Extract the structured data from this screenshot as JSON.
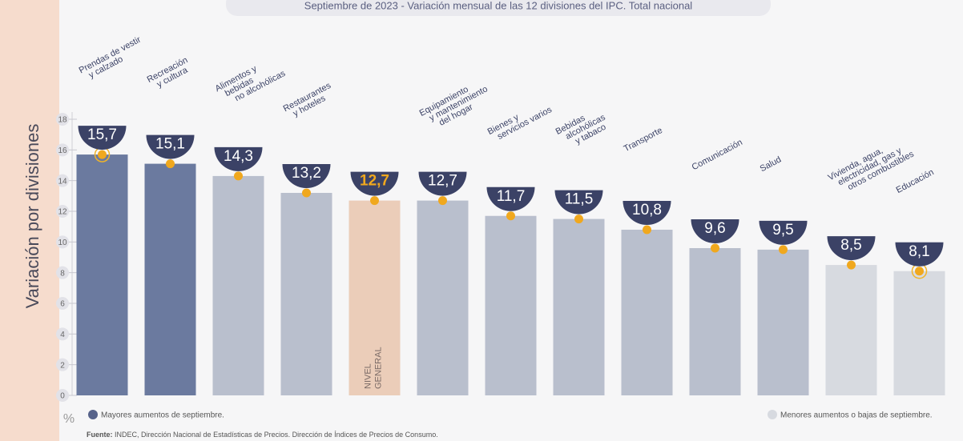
{
  "chart_data": {
    "type": "bar",
    "title": "Septiembre de 2023 - Variación mensual de las 12 divisiones del IPC. Total nacional",
    "y_label": "Variación por divisiones",
    "unit": "%",
    "categories": [
      [
        "Prendas de vestir",
        "y calzado"
      ],
      [
        "Recreación",
        "y cultura"
      ],
      [
        "Alimentos y",
        "bebidas",
        "no alcohólicas"
      ],
      [
        "Restaurantes",
        "y hoteles"
      ],
      [
        "NIVEL",
        "GENERAL"
      ],
      [
        "Equipamiento",
        "y mantenimiento",
        "del hogar"
      ],
      [
        "Bienes y",
        "servicios varios"
      ],
      [
        "Bebidas",
        "alcohólicas",
        "y tabaco"
      ],
      [
        "Transporte"
      ],
      [
        "Comunicación"
      ],
      [
        "Salud"
      ],
      [
        "Vivienda, agua,",
        "electricidad, gas y",
        "otros combustibles"
      ],
      [
        "Educación"
      ]
    ],
    "values": [
      15.7,
      15.1,
      14.3,
      13.2,
      12.7,
      12.7,
      11.7,
      11.5,
      10.8,
      9.6,
      9.5,
      8.5,
      8.1
    ],
    "value_labels": [
      "15,7",
      "15,1",
      "14,3",
      "13,2",
      "12,7",
      "12,7",
      "11,7",
      "11,5",
      "10,8",
      "9,6",
      "9,5",
      "8,5",
      "8,1"
    ],
    "colors": [
      "#6b7a9f",
      "#6b7a9f",
      "#b9bfcd",
      "#b9bfcd",
      "#ebcdb9",
      "#b9bfcd",
      "#b9bfcd",
      "#b9bfcd",
      "#b9bfcd",
      "#b9bfcd",
      "#b9bfcd",
      "#d7dae0",
      "#d7dae0"
    ],
    "ylim": [
      0,
      18
    ],
    "yticks": [
      0,
      2,
      4,
      6,
      8,
      10,
      12,
      14,
      16,
      18
    ],
    "legend": [
      {
        "name": "Mayores aumentos de septiembre.",
        "color": "#56628a"
      },
      {
        "name": "Menores aumentos o bajas de septiembre.",
        "color": "#d7dae0"
      }
    ],
    "source_label": "Fuente:",
    "source": "INDEC, Dirección Nacional de Estadísticas de Precios. Dirección de Índices de Precios de Consumo."
  }
}
